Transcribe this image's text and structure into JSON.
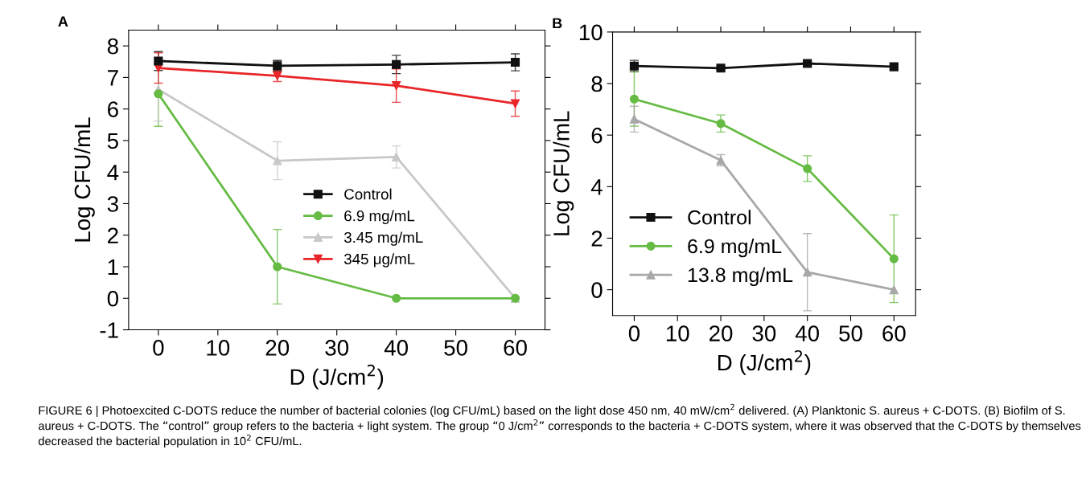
{
  "chart_data": [
    {
      "type": "line",
      "title": "A",
      "xlabel": "D (J/cm$^{2}$)",
      "ylabel": "Log CFU/mL",
      "x": [
        0,
        20,
        40,
        60
      ],
      "xlim": [
        -5,
        65
      ],
      "xticks": [
        0,
        10,
        20,
        30,
        40,
        50,
        60
      ],
      "ylim": [
        -1,
        8.5
      ],
      "yticks": [
        {
          "value": -1,
          "label": "-1"
        },
        0,
        1,
        2,
        3,
        4,
        5,
        6,
        7,
        8
      ],
      "legend": "center",
      "grid": false,
      "series": [
        {
          "name": "Control",
          "color": "#111111",
          "marker": "square",
          "values": [
            7.52,
            7.37,
            7.41,
            7.48
          ],
          "errors": [
            0.3,
            0.17,
            0.29,
            0.27
          ]
        },
        {
          "name": "6.9 mg/mL",
          "color": "#66bb44",
          "marker": "circle",
          "values": [
            6.48,
            1.0,
            0,
            0
          ],
          "errors": [
            1.03,
            1.18,
            null,
            null
          ]
        },
        {
          "name": "3.45 mg/mL",
          "color": "#c8c8c8",
          "marker": "triangle",
          "values": [
            6.62,
            4.36,
            4.48,
            0
          ],
          "errors": [
            1.0,
            0.6,
            0.35,
            null
          ]
        },
        {
          "name": "345 μg/mL",
          "color": "#e8262a",
          "marker": "triangle_down",
          "values": [
            7.3,
            7.05,
            6.74,
            6.17
          ],
          "errors": [
            0.48,
            0.18,
            0.53,
            0.4
          ]
        }
      ],
      "annotations": [
        "FIGURE 6 | Photoexcited C-DOTS reduce the number of bacterial colonies (log CFU/mL) based on the light dose 450 nm, 40 mW/cm$^{2}$ delivered. (A) Planktonic S. aureus + C-DOTS. (B) Biofilm of S. aureus + C-DOTS. The “control” group refers to the bacteria + light system. The group “0 J/cm$^{2}$” corresponds to the bacteria + C-DOTS system, where it was observed that the C-DOTS by themselves decreased the bacterial population in 10$^{2}$ CFU/mL."
      ]
    },
    {
      "type": "line",
      "title": "B",
      "xlabel": "D (J/cm$^{2}$)",
      "ylabel": "Log CFU/mL",
      "x": [
        0,
        20,
        40,
        60
      ],
      "xlim": [
        -5,
        65
      ],
      "xticks": [
        0,
        10,
        20,
        30,
        40,
        50,
        60
      ],
      "ylim": [
        -1,
        10
      ],
      "yticks": [
        0,
        2,
        4,
        6,
        8,
        10
      ],
      "legend": "lower left",
      "grid": false,
      "series": [
        {
          "name": "Control",
          "color": "#111111",
          "marker": "square",
          "values": [
            8.68,
            8.6,
            8.78,
            8.65
          ],
          "errors": [
            0.22,
            0.06,
            0.06,
            0.1
          ]
        },
        {
          "name": "6.9 mg/mL",
          "color": "#66bb44",
          "marker": "circle",
          "values": [
            7.4,
            6.45,
            4.7,
            1.2
          ],
          "errors": [
            1.05,
            0.33,
            0.5,
            1.7
          ]
        },
        {
          "name": "13.8 mg/mL",
          "color": "#a8a8a8",
          "marker": "triangle",
          "values": [
            6.62,
            5.02,
            0.68,
            0
          ],
          "errors": [
            0.5,
            0.22,
            1.5,
            null
          ]
        }
      ]
    }
  ]
}
